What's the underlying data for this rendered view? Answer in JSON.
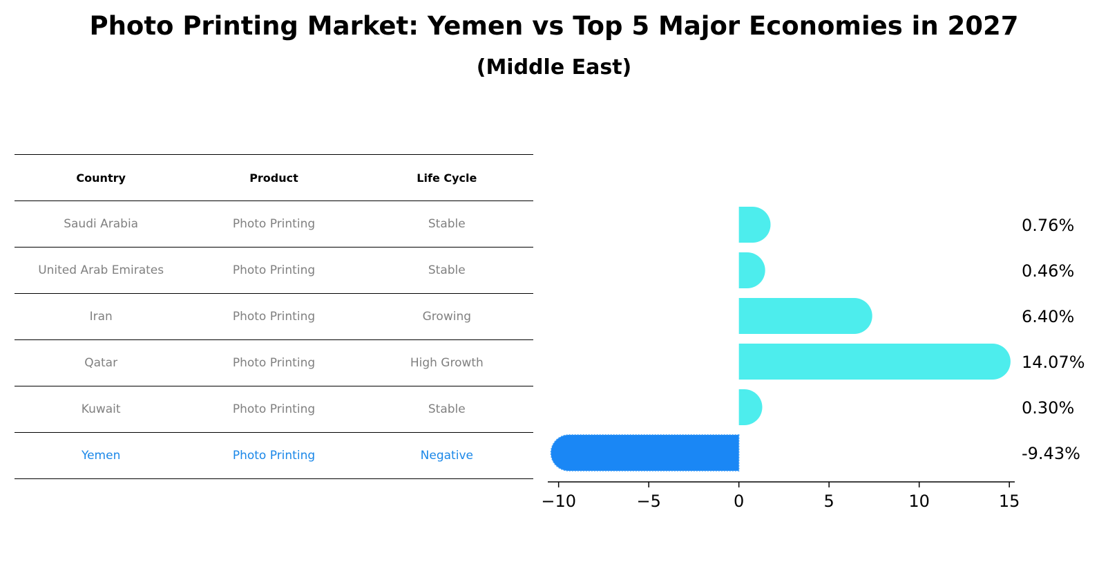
{
  "title": "Photo Printing Market: Yemen vs Top 5 Major Economies in 2027",
  "subtitle": "(Middle East)",
  "table": {
    "headers": [
      "Country",
      "Product",
      "Life Cycle"
    ],
    "rows": [
      {
        "country": "Saudi Arabia",
        "product": "Photo Printing",
        "life_cycle": "Stable"
      },
      {
        "country": "United Arab Emirates",
        "product": "Photo Printing",
        "life_cycle": "Stable"
      },
      {
        "country": "Iran",
        "product": "Photo Printing",
        "life_cycle": "Growing"
      },
      {
        "country": "Qatar",
        "product": "Photo Printing",
        "life_cycle": "High Growth"
      },
      {
        "country": "Kuwait",
        "product": "Photo Printing",
        "life_cycle": "Stable"
      },
      {
        "country": "Yemen",
        "product": "Photo Printing",
        "life_cycle": "Negative",
        "highlight": true
      }
    ]
  },
  "colors": {
    "bar": "#4deded",
    "highlight": "#1a87f5",
    "muted_text": "#808080",
    "highlight_text": "#1a87e8"
  },
  "chart_data": {
    "type": "bar",
    "orientation": "horizontal",
    "categories": [
      "Saudi Arabia",
      "United Arab Emirates",
      "Iran",
      "Qatar",
      "Kuwait",
      "Yemen"
    ],
    "values": [
      0.76,
      0.46,
      6.4,
      14.07,
      0.3,
      -9.43
    ],
    "value_labels": [
      "0.76%",
      "0.46%",
      "6.40%",
      "14.07%",
      "0.30%",
      "-9.43%"
    ],
    "highlight_index": 5,
    "xlim": [
      -10.6,
      15.3
    ],
    "xticks": [
      -10,
      -5,
      0,
      5,
      10,
      15
    ],
    "xtick_labels": [
      "−10",
      "−5",
      "0",
      "5",
      "10",
      "15"
    ],
    "grid": false,
    "legend": "none"
  }
}
